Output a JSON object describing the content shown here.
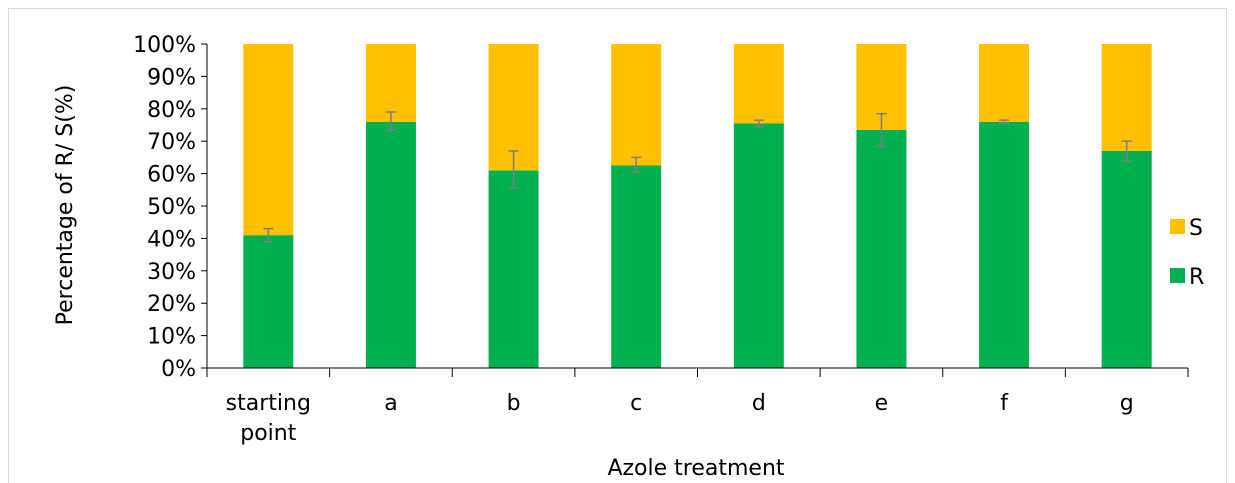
{
  "chart_data": {
    "type": "bar",
    "stacked": true,
    "percent": true,
    "categories": [
      [
        "starting",
        "point"
      ],
      [
        "a"
      ],
      [
        "b"
      ],
      [
        "c"
      ],
      [
        "d"
      ],
      [
        "e"
      ],
      [
        "f"
      ],
      [
        "g"
      ]
    ],
    "series": [
      {
        "name": "R",
        "color": "#00b050",
        "values": [
          41,
          76,
          61,
          62.5,
          75.5,
          73.5,
          76,
          67
        ],
        "error_low": [
          2,
          2.5,
          5.5,
          2,
          1,
          5,
          0.5,
          3
        ],
        "error_high": [
          2,
          3,
          6,
          2.5,
          1,
          5,
          0.5,
          3
        ]
      },
      {
        "name": "S",
        "color": "#ffc000",
        "values": [
          59,
          24,
          39,
          37.5,
          24.5,
          26.5,
          24,
          33
        ]
      }
    ],
    "xlabel": "Azole treatment",
    "ylabel": "Percentage of R/ S(%)",
    "ylim": [
      0,
      100
    ],
    "yticks": [
      "0%",
      "10%",
      "20%",
      "30%",
      "40%",
      "50%",
      "60%",
      "70%",
      "80%",
      "90%",
      "100%"
    ],
    "grid": false,
    "legend": {
      "position": "right",
      "entries": [
        "S",
        "R"
      ]
    },
    "error_bar_color": "#7f7f7f"
  }
}
